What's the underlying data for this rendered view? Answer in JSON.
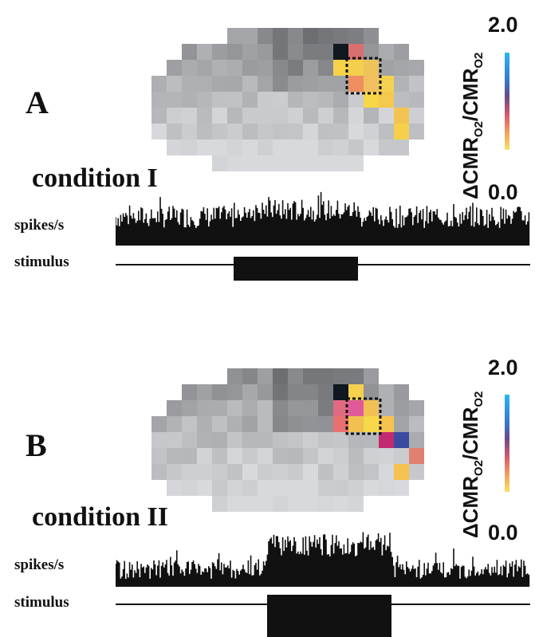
{
  "panels": [
    {
      "id": "A",
      "letter": "A",
      "condition": "condition I",
      "spikes_label": "spikes/s",
      "stimulus_label": "stimulus",
      "scale_max": "2.0",
      "scale_min": "0.0",
      "colorbar_label_main": "ΔCMR",
      "colorbar_label_sub1": "O2",
      "colorbar_label_mid": "/CMR",
      "colorbar_label_sub2": "O2"
    },
    {
      "id": "B",
      "letter": "B",
      "condition": "condition II",
      "spikes_label": "spikes/s",
      "stimulus_label": "stimulus",
      "scale_max": "2.0",
      "scale_min": "0.0",
      "colorbar_label_main": "ΔCMR",
      "colorbar_label_sub1": "O2",
      "colorbar_label_mid": "/CMR",
      "colorbar_label_sub2": "O2"
    }
  ]
}
